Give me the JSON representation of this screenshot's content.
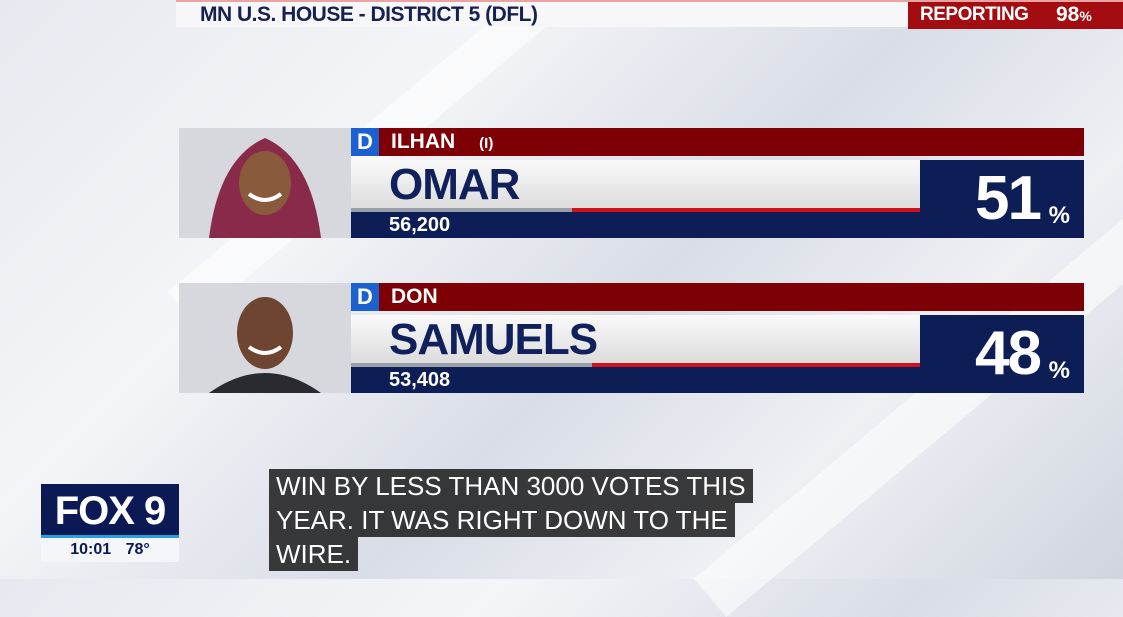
{
  "header": {
    "title": "MN U.S. HOUSE - DISTRICT 5 (DFL)",
    "reporting_label": "REPORTING",
    "reporting_value": "98",
    "reporting_unit": "%"
  },
  "candidates": [
    {
      "party": "D",
      "first": "ILHAN",
      "tag": "(I)",
      "last": "OMAR",
      "votes": "56,200",
      "percent": "51",
      "unit": "%",
      "share": 51
    },
    {
      "party": "D",
      "first": "DON",
      "tag": "",
      "last": "SAMUELS",
      "votes": "53,408",
      "percent": "48",
      "unit": "%",
      "share": 48
    }
  ],
  "logo": {
    "brand": "FOX 9",
    "time": "10:01",
    "temp": "78°"
  },
  "captions": [
    "WIN BY LESS THAN 3000 VOTES THIS",
    "YEAR. IT WAS RIGHT DOWN TO THE",
    "WIRE."
  ],
  "colors": {
    "navy": "#0d1d55",
    "red": "#7e0007",
    "dem_blue": "#1b62d0"
  }
}
